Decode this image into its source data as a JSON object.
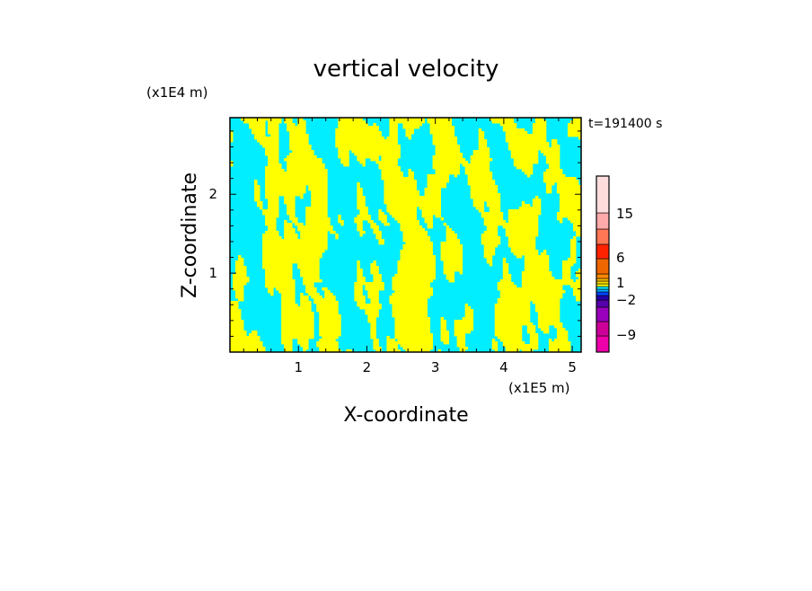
{
  "chart_data": {
    "type": "heatmap",
    "title": "vertical velocity",
    "xlabel": "X-coordinate",
    "ylabel": "Z-coordinate",
    "x_unit": "(x1E5 m)",
    "y_unit": "(x1E4 m)",
    "time_label": "t=191400 s",
    "xlim": [
      0,
      5.13
    ],
    "ylim": [
      0,
      2.97
    ],
    "x_ticks": [
      "1",
      "2",
      "3",
      "4",
      "5"
    ],
    "x_tick_values": [
      1,
      2,
      3,
      4,
      5
    ],
    "y_ticks": [
      "1",
      "2"
    ],
    "y_tick_values": [
      1,
      2
    ],
    "field_colors": {
      "positive": "#ffff00",
      "negative": "#00eeff"
    },
    "colorbar": {
      "labels": [
        "15",
        "6",
        "1",
        "-2",
        "-9"
      ],
      "label_levels": [
        15,
        6,
        1,
        -2,
        -9
      ],
      "colors": [
        "#ee00aa",
        "#cc0099",
        "#9900bb",
        "#5500aa",
        "#2200aa",
        "#0044ff",
        "#00aaff",
        "#00eeff",
        "#ffff00",
        "#ffdd00",
        "#ffbb00",
        "#ff8800",
        "#ee6600",
        "#ff2200",
        "#ff7755",
        "#ffaaaa",
        "#ffdddd"
      ]
    }
  }
}
